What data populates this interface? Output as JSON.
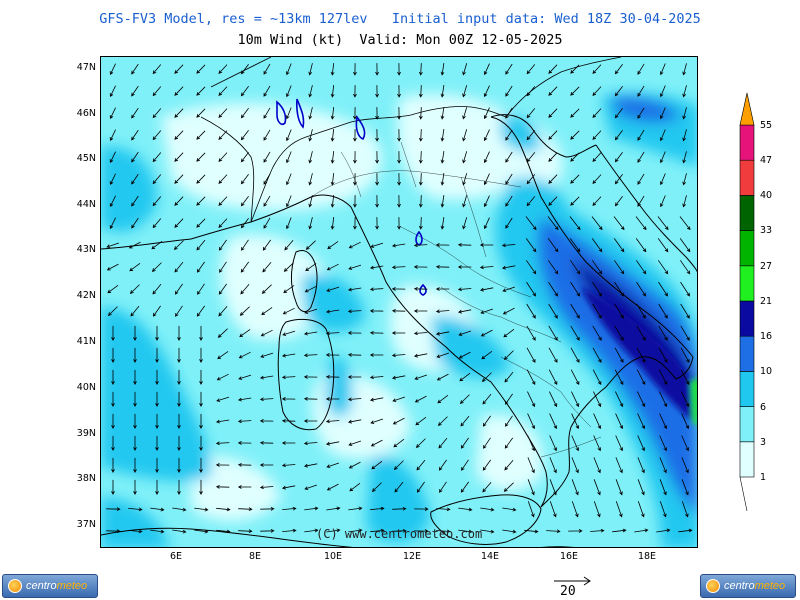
{
  "title": "GFS-FV3 Model, res = ~13km 127lev   Initial input data: Wed 18Z 30-04-2025",
  "subtitle": "10m Wind (kt)  Valid: Mon 00Z 12-05-2025",
  "copyright": "(C) www.centrometeo.com",
  "logo": {
    "prefix": "centro",
    "suffix": "meteo"
  },
  "latitude_labels": [
    "47N",
    "46N",
    "45N",
    "44N",
    "43N",
    "42N",
    "41N",
    "40N",
    "39N",
    "38N",
    "37N"
  ],
  "longitude_labels": [
    "6E",
    "8E",
    "10E",
    "12E",
    "14E",
    "16E",
    "18E"
  ],
  "legend": {
    "unit": "kt",
    "labels": [
      "1",
      "3",
      "6",
      "10",
      "16",
      "21",
      "27",
      "33",
      "40",
      "47",
      "55"
    ],
    "colors": [
      "#e0ffff",
      "#80f0f8",
      "#20c8f0",
      "#1e6ee6",
      "#0a0aa0",
      "#20f020",
      "#00b400",
      "#006400",
      "#f03c3c",
      "#e6147a",
      "#ffff46",
      "#ffa000"
    ]
  },
  "scale_vector": {
    "label": "20",
    "unit": "kt"
  },
  "colors": {
    "coastline": "#000000",
    "lakes": "#0000c8",
    "title": "#1a5fd0"
  }
}
